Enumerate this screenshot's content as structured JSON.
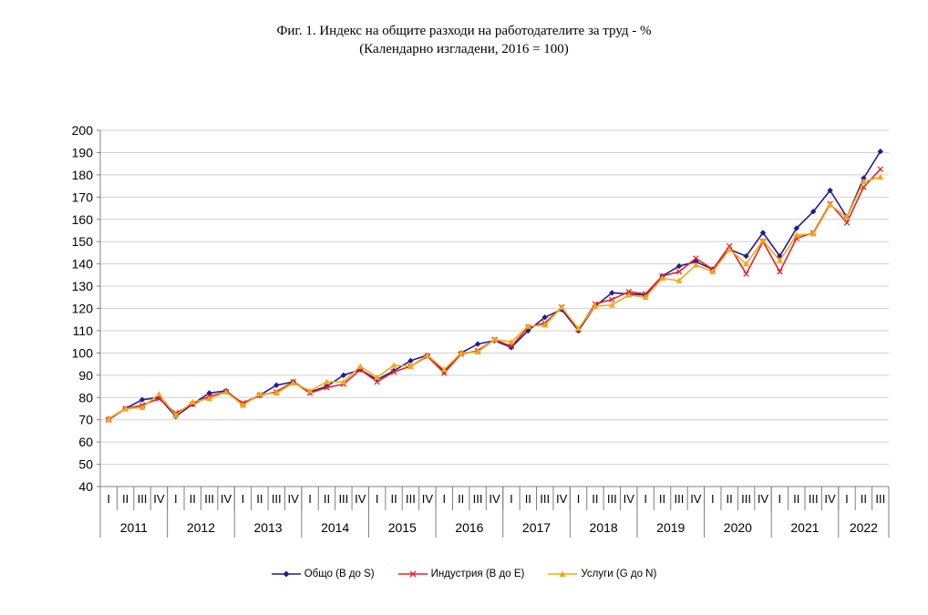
{
  "chart_data": {
    "type": "line",
    "title": "Фиг. 1. Индекс на общите разходи на работодателите за труд - %",
    "subtitle": "(Календарно изгладени, 2016 = 100)",
    "xlabel": "",
    "ylabel": "",
    "ylim": [
      40,
      200
    ],
    "yticks": [
      40,
      50,
      60,
      70,
      80,
      90,
      100,
      110,
      120,
      130,
      140,
      150,
      160,
      170,
      180,
      190,
      200
    ],
    "grid": true,
    "legend_position": "bottom",
    "quarter_labels": [
      "I",
      "II",
      "III",
      "IV"
    ],
    "years": [
      "2011",
      "2012",
      "2013",
      "2014",
      "2015",
      "2016",
      "2017",
      "2018",
      "2019",
      "2020",
      "2021",
      "2022"
    ],
    "categories": [
      "2011 I",
      "2011 II",
      "2011 III",
      "2011 IV",
      "2012 I",
      "2012 II",
      "2012 III",
      "2012 IV",
      "2013 I",
      "2013 II",
      "2013 III",
      "2013 IV",
      "2014 I",
      "2014 II",
      "2014 III",
      "2014 IV",
      "2015 I",
      "2015 II",
      "2015 III",
      "2015 IV",
      "2016 I",
      "2016 II",
      "2016 III",
      "2016 IV",
      "2017 I",
      "2017 II",
      "2017 III",
      "2017 IV",
      "2018 I",
      "2018 II",
      "2018 III",
      "2018 IV",
      "2019 I",
      "2019 II",
      "2019 III",
      "2019 IV",
      "2020 I",
      "2020 II",
      "2020 III",
      "2020 IV",
      "2021 I",
      "2021 II",
      "2021 III",
      "2021 IV",
      "2022 I",
      "2022 II",
      "2022 III"
    ],
    "series": [
      {
        "name": "Общо (B до S)",
        "color": "#1f1f8f",
        "marker": "diamond",
        "values": [
          70.5,
          75.0,
          79.0,
          80.0,
          71.5,
          77.0,
          82.0,
          83.0,
          77.0,
          81.0,
          85.5,
          87.0,
          82.5,
          85.0,
          90.0,
          92.5,
          88.0,
          92.0,
          96.5,
          99.0,
          91.5,
          100.0,
          104.0,
          105.5,
          102.5,
          110.0,
          116.0,
          119.5,
          110.0,
          121.0,
          127.0,
          126.5,
          126.0,
          134.5,
          139.0,
          141.0,
          137.5,
          146.5,
          143.5,
          154.0,
          143.5,
          156.0,
          163.5,
          173.0,
          161.0,
          178.5,
          190.5
        ]
      },
      {
        "name": "Индустрия (B до E)",
        "color": "#e8212a",
        "marker": "x",
        "values": [
          70.0,
          75.0,
          76.5,
          79.5,
          73.0,
          77.0,
          80.5,
          82.5,
          77.5,
          81.0,
          82.5,
          87.0,
          82.0,
          84.5,
          86.0,
          92.5,
          87.0,
          91.5,
          94.0,
          98.5,
          91.0,
          99.5,
          101.0,
          106.0,
          103.0,
          111.5,
          113.5,
          120.5,
          110.5,
          122.0,
          124.0,
          127.5,
          126.5,
          134.5,
          136.5,
          142.5,
          137.5,
          148.0,
          135.5,
          150.0,
          136.5,
          151.5,
          154.0,
          167.0,
          158.5,
          174.5,
          182.5
        ]
      },
      {
        "name": "Услуги (G до N)",
        "color": "#f5a814",
        "marker": "triangle",
        "values": [
          70.5,
          75.0,
          75.5,
          81.5,
          72.0,
          78.0,
          79.5,
          82.5,
          76.5,
          81.5,
          82.0,
          86.5,
          83.0,
          87.0,
          87.0,
          94.0,
          89.0,
          94.5,
          94.0,
          99.0,
          92.5,
          100.0,
          100.5,
          106.0,
          105.0,
          112.0,
          112.5,
          120.5,
          111.0,
          121.0,
          121.5,
          126.0,
          125.0,
          133.5,
          132.5,
          139.5,
          136.5,
          146.5,
          140.0,
          150.5,
          141.5,
          153.0,
          153.5,
          166.5,
          161.0,
          177.0,
          179.0
        ]
      }
    ]
  }
}
